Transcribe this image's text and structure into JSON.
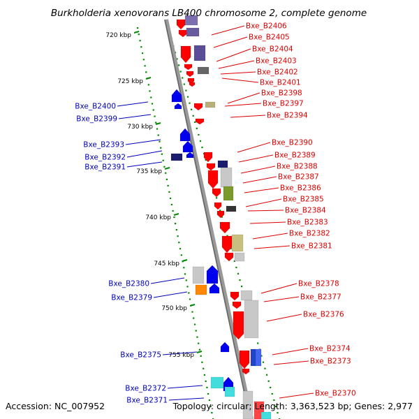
{
  "title": "Burkholderia xenovorans LB400 chromosome 2, complete genome",
  "footer": {
    "accession": "Accession: NC_007952",
    "summary": "Topology: circular; Length: 3,363,523 bp; Genes: 2,977"
  },
  "scale_labels": [
    "720 kbp",
    "725 kbp",
    "730 kbp",
    "735 kbp",
    "740 kbp",
    "745 kbp",
    "750 kbp",
    "755 kbp"
  ],
  "colors": {
    "forward_label": "#dd0000",
    "reverse_label": "#0000bb",
    "backbone": "#999999",
    "scale_tick": "#008800",
    "forward_gene": "#ff0000",
    "reverse_gene": "#0000ee"
  },
  "forward_genes": [
    "Bxe_B2406",
    "Bxe_B2405",
    "Bxe_B2404",
    "Bxe_B2403",
    "Bxe_B2402",
    "Bxe_B2401",
    "Bxe_B2398",
    "Bxe_B2397",
    "Bxe_B2394",
    "Bxe_B2390",
    "Bxe_B2389",
    "Bxe_B2388",
    "Bxe_B2387",
    "Bxe_B2386",
    "Bxe_B2385",
    "Bxe_B2384",
    "Bxe_B2383",
    "Bxe_B2382",
    "Bxe_B2381",
    "Bxe_B2378",
    "Bxe_B2377",
    "Bxe_B2376",
    "Bxe_B2374",
    "Bxe_B2373",
    "Bxe_B2370"
  ],
  "reverse_genes": [
    "Bxe_B2400",
    "Bxe_B2399",
    "Bxe_B2393",
    "Bxe_B2392",
    "Bxe_B2391",
    "Bxe_B2380",
    "Bxe_B2379",
    "Bxe_B2375",
    "Bxe_B2372",
    "Bxe_B2371"
  ]
}
